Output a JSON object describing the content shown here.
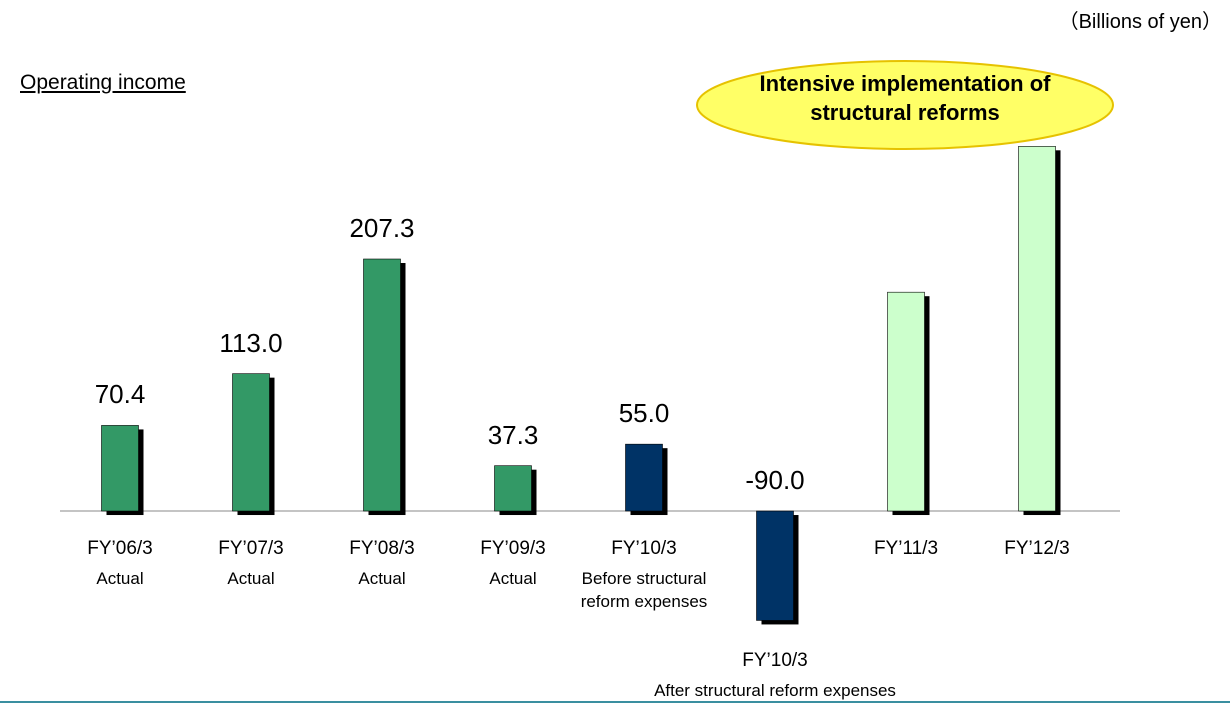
{
  "chart_data": {
    "type": "bar",
    "title": "Operating income",
    "unit_label": "（Billions of yen）",
    "annotation": "Intensive implementation of structural reforms",
    "categories": [
      "FY’06/3",
      "FY’07/3",
      "FY’08/3",
      "FY’09/3",
      "FY’10/3",
      "FY’10/3",
      "FY’11/3",
      "FY’12/3"
    ],
    "sublabels": [
      "Actual",
      "Actual",
      "Actual",
      "Actual",
      "Before structural reform expenses",
      "After structural reform expenses",
      null,
      null
    ],
    "values": [
      70.4,
      113.0,
      207.3,
      37.3,
      55.0,
      -90.0,
      180,
      300
    ],
    "value_labels": [
      "70.4",
      "113.0",
      "207.3",
      "37.3",
      "55.0",
      "-90.0",
      null,
      null
    ],
    "colors": [
      "#339966",
      "#339966",
      "#339966",
      "#339966",
      "#003366",
      "#003366",
      "#ccffcc",
      "#ccffcc"
    ],
    "ylim": [
      -100,
      320
    ]
  }
}
